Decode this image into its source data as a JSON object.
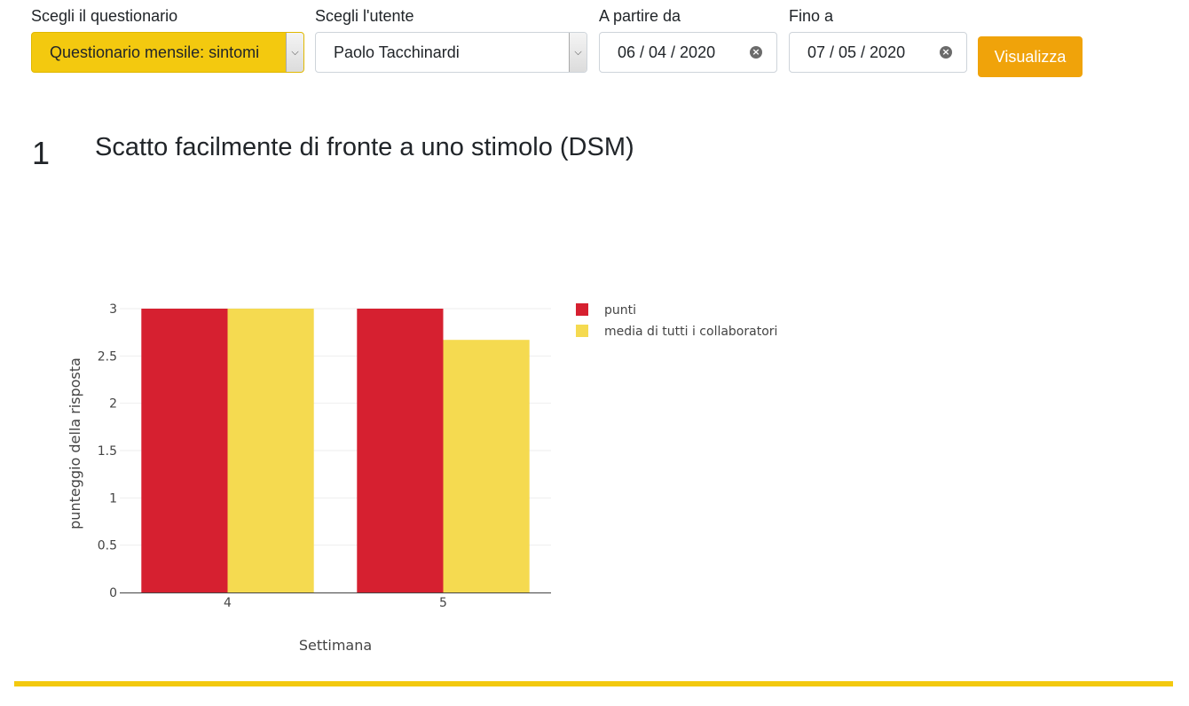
{
  "filters": {
    "questionnaire": {
      "label": "Scegli il questionario",
      "value": "Questionario mensile: sintomi"
    },
    "user": {
      "label": "Scegli l'utente",
      "value": "Paolo Tacchinardi"
    },
    "from": {
      "label": "A partire da",
      "value": "06 / 04 / 2020"
    },
    "to": {
      "label": "Fino a",
      "value": "07 / 05 / 2020"
    },
    "submit_label": "Visualizza"
  },
  "question": {
    "number": "1",
    "title": "Scatto facilmente di fronte a uno stimolo (DSM)"
  },
  "colors": {
    "accent": "#f3c90f",
    "button": "#f0a30a",
    "series_1": "#d62030",
    "series_2": "#f5da50"
  },
  "chart_data": {
    "type": "bar",
    "title": "",
    "xlabel": "Settimana",
    "ylabel": "punteggio della risposta",
    "categories": [
      "4",
      "5"
    ],
    "series": [
      {
        "name": "punti",
        "values": [
          3,
          3
        ]
      },
      {
        "name": "media di tutti i collaboratori",
        "values": [
          3,
          2.67
        ]
      }
    ],
    "ylim": [
      0,
      3
    ],
    "yticks": [
      0,
      0.5,
      1,
      1.5,
      2,
      2.5,
      3
    ],
    "ytick_labels": [
      "0",
      "0.5",
      "1",
      "1.5",
      "2",
      "2.5",
      "3"
    ],
    "grid": true,
    "legend_position": "right"
  }
}
